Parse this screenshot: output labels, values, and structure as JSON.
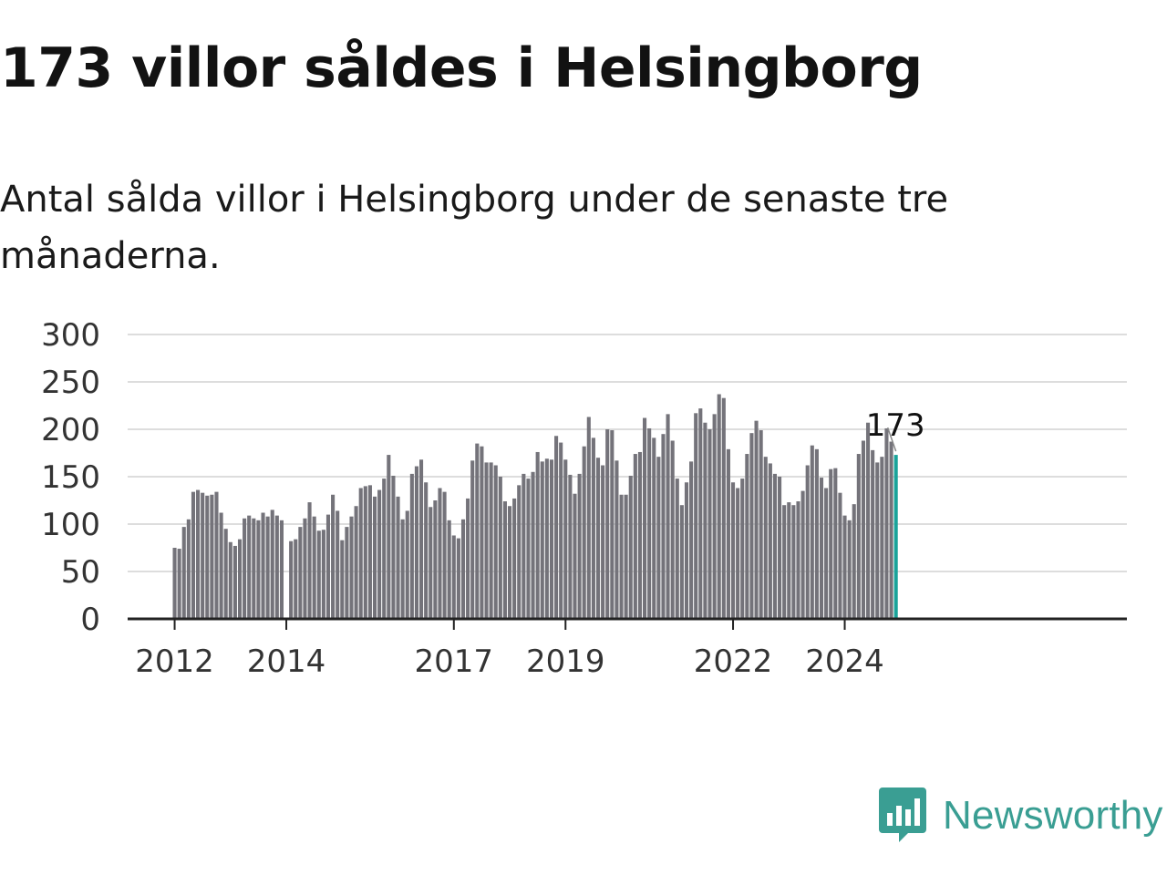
{
  "title": "173 villor såldes i Helsingborg",
  "subtitle": "Antal sålda villor i Helsingborg under de senaste tre månaderna.",
  "brand": {
    "name": "Newsworthy",
    "icon": "newsworthy-logo-icon",
    "color": "#3a9e93"
  },
  "colors": {
    "bar": "#74737a",
    "highlight": "#1aa39a",
    "grid": "#dddddd",
    "axis": "#222222"
  },
  "chart_data": {
    "type": "bar",
    "title": "173 villor såldes i Helsingborg",
    "xlabel": "",
    "ylabel": "",
    "ylim": [
      0,
      300
    ],
    "yticks": [
      0,
      50,
      100,
      150,
      200,
      250,
      300
    ],
    "grid": true,
    "start": "2012-01",
    "xtick_labels": [
      {
        "label": "2012",
        "month": "2012-01"
      },
      {
        "label": "2014",
        "month": "2014-01"
      },
      {
        "label": "2017",
        "month": "2017-01"
      },
      {
        "label": "2019",
        "month": "2019-01"
      },
      {
        "label": "2022",
        "month": "2022-01"
      },
      {
        "label": "2024",
        "month": "2024-01"
      }
    ],
    "annotation": {
      "text": "173",
      "month": "2024-12",
      "value": 173
    },
    "values": [
      75,
      74,
      97,
      105,
      134,
      136,
      133,
      130,
      131,
      134,
      112,
      95,
      81,
      77,
      84,
      106,
      109,
      106,
      104,
      112,
      108,
      115,
      109,
      104,
      null,
      82,
      84,
      97,
      106,
      123,
      108,
      93,
      94,
      110,
      131,
      114,
      83,
      97,
      108,
      119,
      138,
      140,
      141,
      129,
      136,
      148,
      173,
      151,
      129,
      105,
      114,
      153,
      161,
      168,
      144,
      118,
      125,
      138,
      134,
      104,
      88,
      85,
      105,
      127,
      167,
      185,
      182,
      165,
      165,
      162,
      150,
      124,
      119,
      127,
      141,
      153,
      148,
      155,
      176,
      166,
      169,
      168,
      193,
      186,
      168,
      152,
      132,
      153,
      182,
      213,
      191,
      170,
      162,
      200,
      199,
      167,
      131,
      131,
      151,
      174,
      176,
      212,
      201,
      191,
      171,
      195,
      216,
      188,
      148,
      120,
      144,
      166,
      217,
      222,
      207,
      200,
      216,
      237,
      233,
      179,
      144,
      138,
      148,
      174,
      196,
      209,
      199,
      171,
      164,
      153,
      150,
      120,
      123,
      120,
      124,
      135,
      162,
      183,
      179,
      149,
      138,
      158,
      159,
      133,
      109,
      104,
      121,
      174,
      188,
      207,
      178,
      165,
      171,
      201,
      187,
      173
    ]
  }
}
